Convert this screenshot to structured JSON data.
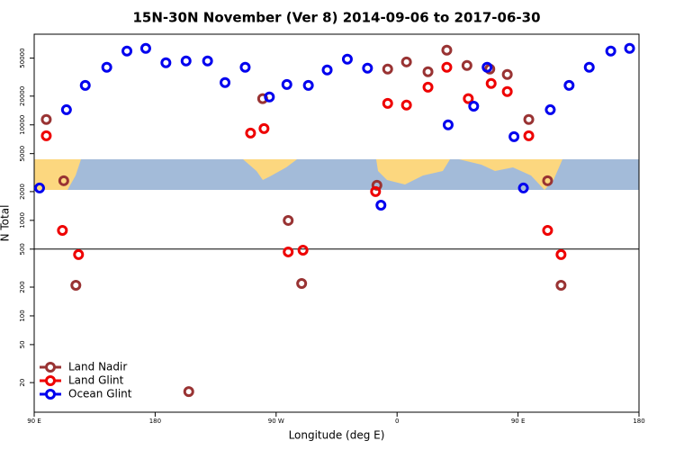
{
  "chart_data": {
    "type": "scatter",
    "title": "15N-30N November (Ver 8)   2014-09-06 to 2017-06-30",
    "x_label": "Longitude (deg E)",
    "y_label": "N Total",
    "log_y": true,
    "xlim": [
      90,
      540
    ],
    "ylim": [
      9.8,
      89000
    ],
    "xticks": [
      {
        "value": 90,
        "label": "90 E"
      },
      {
        "value": 180,
        "label": "180"
      },
      {
        "value": 270,
        "label": "90 W"
      },
      {
        "value": 360,
        "label": "0"
      },
      {
        "value": 450,
        "label": "90 E"
      },
      {
        "value": 540,
        "label": "180"
      }
    ],
    "yticks": [
      20,
      50,
      100,
      200,
      500,
      1000,
      2000,
      5000,
      10000,
      20000,
      50000
    ],
    "hline": 500,
    "legend": "bottom-left",
    "series": [
      {
        "name": "Land Nadir",
        "color": "#993333",
        "x": [
          99,
          112,
          121,
          205,
          260,
          279,
          289,
          345,
          353,
          367,
          383,
          397,
          412,
          429,
          442,
          458,
          472,
          482
        ],
        "values": [
          11400,
          2600,
          209,
          16.1,
          18800,
          998,
          218,
          2330,
          38400,
          45600,
          36000,
          60600,
          41900,
          38400,
          33700,
          11400,
          2600,
          209
        ]
      },
      {
        "name": "Land Glint",
        "color": "#ee0000",
        "x": [
          99,
          111,
          123,
          251,
          261,
          279,
          290,
          344,
          353,
          367,
          383,
          397,
          413,
          430,
          442,
          458,
          472,
          482
        ],
        "values": [
          7690,
          785,
          438,
          8200,
          9150,
          467,
          487,
          2000,
          16800,
          16100,
          24800,
          40100,
          18800,
          27100,
          22300,
          7690,
          785,
          438
        ]
      },
      {
        "name": "Ocean Glint",
        "color": "#0000ee",
        "x": [
          94,
          114,
          128,
          144,
          159,
          173,
          188,
          203,
          219,
          232,
          247,
          265,
          278,
          294,
          308,
          323,
          338,
          348,
          398,
          417,
          427,
          447,
          454,
          474,
          488,
          503,
          519,
          533
        ],
        "values": [
          2180,
          14400,
          25900,
          40100,
          59300,
          63200,
          44700,
          46700,
          46700,
          27700,
          40100,
          19600,
          26500,
          25900,
          37600,
          48700,
          39200,
          1440,
          10000,
          15700,
          40100,
          7520,
          2180,
          14400,
          25900,
          40100,
          59300,
          63200
        ]
      }
    ]
  }
}
